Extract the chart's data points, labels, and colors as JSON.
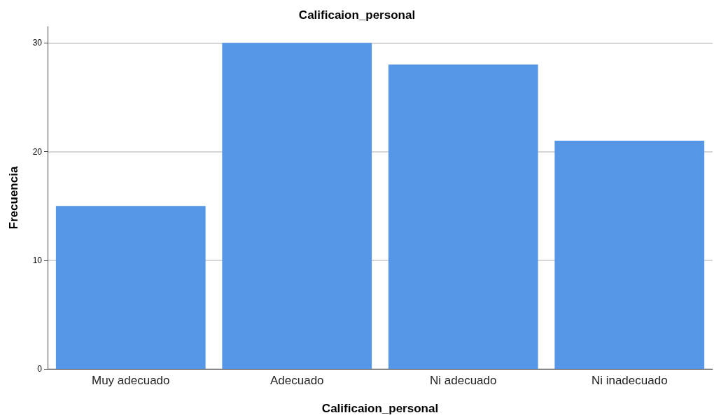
{
  "chart_data": {
    "type": "bar",
    "title": "Calificaion_personal",
    "xlabel": "Calificaion_personal",
    "ylabel": "Frecuencia",
    "categories": [
      "Muy adecuado",
      "Adecuado",
      "Ni adecuado",
      "Ni inadecuado"
    ],
    "values": [
      15,
      30,
      28,
      21
    ],
    "color": "#5596e6",
    "ylim": [
      0,
      31.5
    ],
    "yticks": [
      0,
      10,
      20,
      30
    ],
    "grid": "y"
  }
}
